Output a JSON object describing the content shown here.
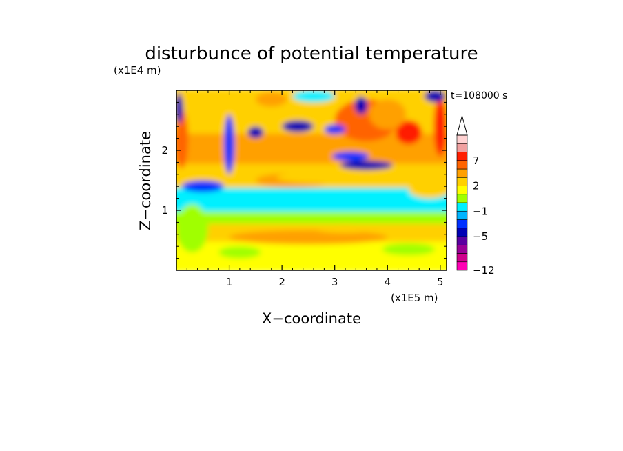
{
  "chart_data": {
    "type": "heatmap",
    "title": "disturbunce of potential temperature",
    "y_unit_label": "(x1E4 m)",
    "x_unit_label": "(x1E5 m)",
    "xlabel": "X−coordinate",
    "ylabel": "Z−coordinate",
    "time_label": "t=108000 s",
    "xlim": [
      0,
      5.12
    ],
    "ylim": [
      0,
      3.0
    ],
    "x_ticks": [
      {
        "value": 1,
        "label": "1"
      },
      {
        "value": 2,
        "label": "2"
      },
      {
        "value": 3,
        "label": "3"
      },
      {
        "value": 4,
        "label": "4"
      },
      {
        "value": 5,
        "label": "5"
      }
    ],
    "y_ticks": [
      {
        "value": 1,
        "label": "1"
      },
      {
        "value": 2,
        "label": "2"
      }
    ],
    "colorbar": {
      "levels": [
        -12,
        -10,
        -8,
        -7,
        -5,
        -4,
        -3,
        -1,
        0,
        1,
        2,
        3,
        5,
        7,
        8,
        9
      ],
      "colors": [
        "#ff00b4",
        "#d0008c",
        "#9a0096",
        "#5a00a0",
        "#0000b4",
        "#0030ff",
        "#00b4ff",
        "#00f0ff",
        "#a0ff00",
        "#ffff00",
        "#ffd000",
        "#ffa000",
        "#ff6400",
        "#ff1e00",
        "#f0a0a0",
        "#ffd2d2"
      ],
      "tick_labels": [
        {
          "value": 7,
          "label": "7"
        },
        {
          "value": 2,
          "label": "2"
        },
        {
          "value": -1,
          "label": "−1"
        },
        {
          "value": -5,
          "label": "−5"
        },
        {
          "value": -12,
          "label": "−12"
        }
      ],
      "extend": "max"
    },
    "field_description": [
      {
        "z_range": [
          0.0,
          0.2
        ],
        "value": 1.5
      },
      {
        "z_range": [
          0.2,
          0.5
        ],
        "value": 1.0
      },
      {
        "z_range": [
          0.5,
          0.8
        ],
        "value": 2.0
      },
      {
        "z_range": [
          0.8,
          1.0
        ],
        "value": 0.5
      },
      {
        "z_range": [
          1.0,
          1.4
        ],
        "value": -1.0
      },
      {
        "z_range": [
          1.4,
          1.8
        ],
        "value": 2.0
      },
      {
        "z_range": [
          1.8,
          2.3
        ],
        "value": 3.0
      },
      {
        "z_range": [
          2.3,
          3.0
        ],
        "value": 2.5
      }
    ]
  }
}
